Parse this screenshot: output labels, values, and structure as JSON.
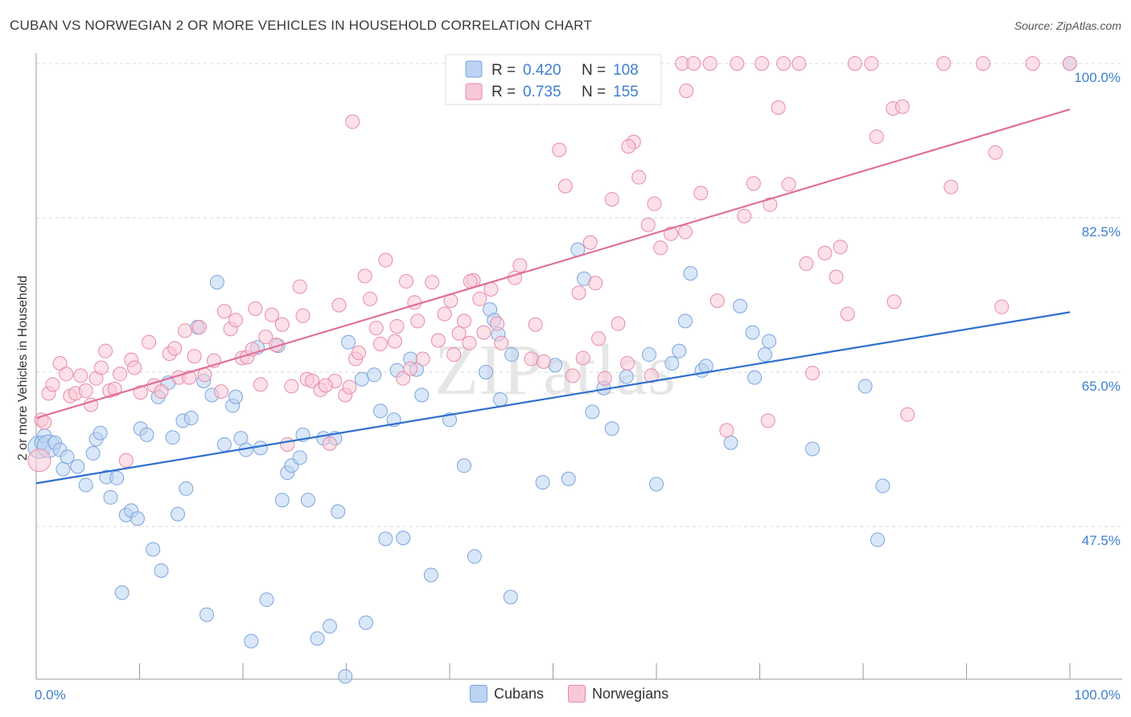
{
  "header": {
    "title": "CUBAN VS NORWEGIAN 2 OR MORE VEHICLES IN HOUSEHOLD CORRELATION CHART",
    "source": "Source: ZipAtlas.com"
  },
  "watermark": "ZIPatlas",
  "legend": {
    "rows": [
      {
        "r_label": "R =",
        "r_value": "0.420",
        "n_label": "N =",
        "n_value": "108",
        "color": "#7aa5de"
      },
      {
        "r_label": "R =",
        "r_value": "0.735",
        "n_label": "N =",
        "n_value": "155",
        "color": "#e88aa8"
      }
    ]
  },
  "bottom_legend": {
    "cubans": "Cubans",
    "norwegians": "Norwegians"
  },
  "chart_data": {
    "type": "scatter",
    "title": "CUBAN VS NORWEGIAN 2 OR MORE VEHICLES IN HOUSEHOLD CORRELATION CHART",
    "xlabel": "",
    "ylabel": "2 or more Vehicles in Household",
    "xlim": [
      0,
      100
    ],
    "ylim": [
      30,
      100
    ],
    "x_tick_labels": [
      "0.0%",
      "100.0%"
    ],
    "y_ticks": [
      47.5,
      65.0,
      82.5,
      100.0
    ],
    "y_tick_labels": [
      "47.5%",
      "65.0%",
      "82.5%",
      "100.0%"
    ],
    "grid": true,
    "legend_position": "top-center",
    "series": [
      {
        "name": "Cubans",
        "color": "#7aa5de",
        "fill": "#bcd3f2",
        "trend": {
          "x": [
            0,
            100
          ],
          "y": [
            52.4,
            71.8
          ]
        },
        "points": [
          [
            0.3,
            56.5
          ],
          [
            0.5,
            57
          ],
          [
            0.8,
            57.8
          ],
          [
            1.2,
            56.6
          ],
          [
            1.8,
            57
          ],
          [
            2.3,
            56.2
          ],
          [
            2.6,
            54
          ],
          [
            3,
            55.4
          ],
          [
            4,
            54.3
          ],
          [
            4.8,
            52.2
          ],
          [
            5.5,
            55.8
          ],
          [
            5.8,
            57.4
          ],
          [
            6.2,
            58.1
          ],
          [
            6.8,
            53.1
          ],
          [
            7.2,
            50.8
          ],
          [
            7.8,
            53
          ],
          [
            8.3,
            40
          ],
          [
            8.7,
            48.8
          ],
          [
            9.2,
            49.3
          ],
          [
            9.8,
            48.4
          ],
          [
            10.1,
            58.6
          ],
          [
            10.7,
            57.9
          ],
          [
            11.3,
            44.9
          ],
          [
            11.8,
            62.2
          ],
          [
            12.1,
            42.5
          ],
          [
            12.8,
            63.8
          ],
          [
            13.2,
            57.6
          ],
          [
            13.7,
            48.9
          ],
          [
            14.2,
            59.5
          ],
          [
            14.5,
            51.8
          ],
          [
            15,
            59.8
          ],
          [
            15.6,
            70.1
          ],
          [
            16.2,
            64
          ],
          [
            16.5,
            37.5
          ],
          [
            17,
            62.4
          ],
          [
            17.5,
            75.2
          ],
          [
            18.2,
            56.8
          ],
          [
            19,
            61.2
          ],
          [
            19.3,
            62.2
          ],
          [
            19.8,
            57.5
          ],
          [
            20.3,
            56.2
          ],
          [
            20.8,
            34.5
          ],
          [
            21.4,
            67.8
          ],
          [
            21.7,
            56.4
          ],
          [
            22.3,
            39.2
          ],
          [
            23.4,
            68
          ],
          [
            23.8,
            50.5
          ],
          [
            24.3,
            53.6
          ],
          [
            24.7,
            54.4
          ],
          [
            25.5,
            55.3
          ],
          [
            25.8,
            57.9
          ],
          [
            26.3,
            50.5
          ],
          [
            27.2,
            34.8
          ],
          [
            27.8,
            57.5
          ],
          [
            28.4,
            36.2
          ],
          [
            28.9,
            57.5
          ],
          [
            29.2,
            49.2
          ],
          [
            29.9,
            30.5
          ],
          [
            30.2,
            68.4
          ],
          [
            31.5,
            64.2
          ],
          [
            31.9,
            36.6
          ],
          [
            32.7,
            64.7
          ],
          [
            33.3,
            60.6
          ],
          [
            33.8,
            46.1
          ],
          [
            34.6,
            59.6
          ],
          [
            34.9,
            65.2
          ],
          [
            35.5,
            46.2
          ],
          [
            36.2,
            66.5
          ],
          [
            36.8,
            65.3
          ],
          [
            37.3,
            62.4
          ],
          [
            38.2,
            42
          ],
          [
            40,
            59.6
          ],
          [
            41.4,
            54.4
          ],
          [
            42.4,
            44.1
          ],
          [
            43.5,
            65
          ],
          [
            43.9,
            72.1
          ],
          [
            44.3,
            70.9
          ],
          [
            44.7,
            69.3
          ],
          [
            44.9,
            61.9
          ],
          [
            45.9,
            39.5
          ],
          [
            46,
            67
          ],
          [
            49,
            52.5
          ],
          [
            50.2,
            65.8
          ],
          [
            51.5,
            52.9
          ],
          [
            52.4,
            78.9
          ],
          [
            53,
            75.6
          ],
          [
            53.8,
            60.5
          ],
          [
            54.9,
            63.2
          ],
          [
            55.7,
            58.6
          ],
          [
            57.1,
            64.5
          ],
          [
            59.3,
            67
          ],
          [
            60,
            52.3
          ],
          [
            61.5,
            66
          ],
          [
            62.2,
            67.4
          ],
          [
            62.8,
            70.8
          ],
          [
            63.3,
            76.2
          ],
          [
            64.4,
            65.2
          ],
          [
            64.8,
            65.7
          ],
          [
            67.2,
            57
          ],
          [
            68.1,
            72.5
          ],
          [
            69.3,
            69.5
          ],
          [
            69.5,
            64.4
          ],
          [
            70.5,
            67
          ],
          [
            70.9,
            68.5
          ],
          [
            75.1,
            56.3
          ],
          [
            80.2,
            63.4
          ],
          [
            81.4,
            46
          ],
          [
            81.9,
            52.1
          ],
          [
            100,
            100
          ]
        ]
      },
      {
        "name": "Norwegians",
        "color": "#e88aa8",
        "fill": "#f9c8d6",
        "trend": {
          "x": [
            0,
            100
          ],
          "y": [
            59.8,
            94.8
          ]
        },
        "points": [
          [
            0.3,
            55
          ],
          [
            0.5,
            59.6
          ],
          [
            0.8,
            59.3
          ],
          [
            1.2,
            62.6
          ],
          [
            1.6,
            63.6
          ],
          [
            2.3,
            66
          ],
          [
            2.9,
            64.8
          ],
          [
            3.3,
            62.3
          ],
          [
            3.8,
            62.6
          ],
          [
            4.3,
            64.6
          ],
          [
            4.8,
            62.9
          ],
          [
            5.3,
            61.3
          ],
          [
            5.8,
            64.3
          ],
          [
            6.3,
            65.5
          ],
          [
            6.7,
            67.4
          ],
          [
            7.1,
            62.9
          ],
          [
            7.6,
            63.1
          ],
          [
            8.1,
            64.8
          ],
          [
            8.7,
            55
          ],
          [
            9.2,
            66.4
          ],
          [
            9.5,
            65.5
          ],
          [
            10.1,
            62.7
          ],
          [
            10.9,
            68.4
          ],
          [
            11.4,
            63.5
          ],
          [
            12.1,
            62.8
          ],
          [
            12.9,
            67.1
          ],
          [
            13.4,
            67.7
          ],
          [
            13.8,
            64.4
          ],
          [
            14.4,
            69.7
          ],
          [
            14.8,
            64.4
          ],
          [
            15.3,
            66.8
          ],
          [
            15.8,
            70.1
          ],
          [
            16.3,
            64.7
          ],
          [
            17.2,
            66.3
          ],
          [
            17.9,
            62.8
          ],
          [
            18.2,
            71.9
          ],
          [
            18.8,
            69.9
          ],
          [
            19.3,
            70.9
          ],
          [
            19.9,
            66.6
          ],
          [
            20.4,
            66.7
          ],
          [
            20.9,
            67.6
          ],
          [
            21.2,
            72.2
          ],
          [
            21.7,
            63.6
          ],
          [
            22.2,
            69
          ],
          [
            22.8,
            71.5
          ],
          [
            23.2,
            68.1
          ],
          [
            23.8,
            70.4
          ],
          [
            24.3,
            56.8
          ],
          [
            24.7,
            63.4
          ],
          [
            25.5,
            74.7
          ],
          [
            25.8,
            71.4
          ],
          [
            26.2,
            64.2
          ],
          [
            26.7,
            64
          ],
          [
            27.5,
            63
          ],
          [
            28.4,
            56.9
          ],
          [
            28.9,
            64
          ],
          [
            29.3,
            72.6
          ],
          [
            29.9,
            62.4
          ],
          [
            30.3,
            63.3
          ],
          [
            30.9,
            66.5
          ],
          [
            31.2,
            67.2
          ],
          [
            31.8,
            75.9
          ],
          [
            32.3,
            73.3
          ],
          [
            32.9,
            70
          ],
          [
            33.3,
            68.2
          ],
          [
            33.8,
            77.7
          ],
          [
            34.7,
            68.5
          ],
          [
            34.9,
            70.2
          ],
          [
            35.5,
            64.3
          ],
          [
            35.8,
            75.3
          ],
          [
            36.2,
            65.4
          ],
          [
            36.6,
            72.9
          ],
          [
            36.9,
            70.8
          ],
          [
            37.4,
            66.5
          ],
          [
            38.3,
            75.2
          ],
          [
            38.9,
            68.6
          ],
          [
            39.5,
            71.6
          ],
          [
            40.1,
            73.1
          ],
          [
            40.4,
            67
          ],
          [
            40.9,
            69.4
          ],
          [
            41.4,
            70.8
          ],
          [
            41.9,
            68.3
          ],
          [
            42.3,
            75.4
          ],
          [
            42.9,
            73.3
          ],
          [
            43.3,
            69.5
          ],
          [
            44,
            74.4
          ],
          [
            44.6,
            70.5
          ],
          [
            45,
            68.3
          ],
          [
            46.3,
            75.7
          ],
          [
            46.8,
            77.1
          ],
          [
            47.9,
            66.5
          ],
          [
            48.3,
            70.4
          ],
          [
            49.1,
            66.2
          ],
          [
            50.6,
            90.2
          ],
          [
            51.2,
            86.1
          ],
          [
            51.9,
            64.6
          ],
          [
            52.5,
            74
          ],
          [
            52.9,
            66.6
          ],
          [
            53.6,
            79.7
          ],
          [
            54.1,
            75.1
          ],
          [
            54.4,
            68.8
          ],
          [
            55,
            64.3
          ],
          [
            55.7,
            84.6
          ],
          [
            56.3,
            70.5
          ],
          [
            57.2,
            66
          ],
          [
            57.8,
            91.1
          ],
          [
            58.3,
            87.1
          ],
          [
            59.2,
            81.7
          ],
          [
            59.8,
            84.1
          ],
          [
            60.4,
            79.1
          ],
          [
            61.4,
            80.7
          ],
          [
            62.5,
            100
          ],
          [
            62.8,
            80.9
          ],
          [
            63.6,
            100
          ],
          [
            64.3,
            85.3
          ],
          [
            65.2,
            100
          ],
          [
            65.9,
            73.1
          ],
          [
            66.8,
            58.4
          ],
          [
            67.8,
            100
          ],
          [
            68.5,
            82.7
          ],
          [
            69.4,
            86.4
          ],
          [
            70.2,
            100
          ],
          [
            71,
            84
          ],
          [
            71.8,
            95
          ],
          [
            72.3,
            100
          ],
          [
            72.8,
            86.3
          ],
          [
            73.8,
            100
          ],
          [
            74.5,
            77.3
          ],
          [
            75.1,
            64.9
          ],
          [
            76.3,
            78.5
          ],
          [
            77.4,
            75.8
          ],
          [
            77.8,
            79.2
          ],
          [
            78.5,
            71.6
          ],
          [
            79.2,
            100
          ],
          [
            80.8,
            100
          ],
          [
            81.3,
            91.7
          ],
          [
            82.9,
            94.9
          ],
          [
            83,
            73
          ],
          [
            83.8,
            95.1
          ],
          [
            84.3,
            60.2
          ],
          [
            87.8,
            100
          ],
          [
            88.5,
            86
          ],
          [
            91.6,
            100
          ],
          [
            92.8,
            89.9
          ],
          [
            96.4,
            100
          ],
          [
            100,
            100
          ],
          [
            59.5,
            64.6
          ],
          [
            70.8,
            59.5
          ],
          [
            62.9,
            96.9
          ],
          [
            57.3,
            90.6
          ],
          [
            48.4,
            96.1
          ],
          [
            42,
            75.3
          ],
          [
            30.6,
            93.4
          ],
          [
            28,
            63.5
          ],
          [
            93.4,
            72.4
          ]
        ]
      }
    ]
  }
}
